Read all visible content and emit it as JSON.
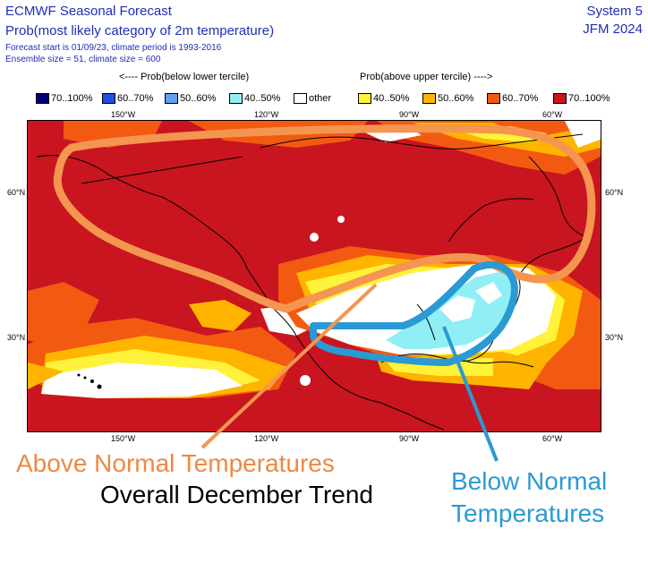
{
  "header": {
    "title": "ECMWF Seasonal Forecast",
    "subtitle": "Prob(most likely category of 2m temperature)",
    "forecast_info": "Forecast start is 01/09/23, climate period is 1993-2016",
    "ensemble_info": "Ensemble size = 51, climate size = 600",
    "system": "System 5",
    "period": "JFM 2024"
  },
  "legend": {
    "below_heading": "<---- Prob(below lower tercile)",
    "above_heading": "Prob(above upper tercile) ---->",
    "items": [
      {
        "label": "70..100%",
        "color": "#00007a"
      },
      {
        "label": "60..70%",
        "color": "#1f4fe0"
      },
      {
        "label": "50..60%",
        "color": "#5fa0f0"
      },
      {
        "label": "40..50%",
        "color": "#8feff5"
      },
      {
        "label": "other",
        "color": "#ffffff"
      },
      {
        "label": "40..50%",
        "color": "#fff23a"
      },
      {
        "label": "50..60%",
        "color": "#ffb400"
      },
      {
        "label": "60..70%",
        "color": "#f25a12"
      },
      {
        "label": "70..100%",
        "color": "#c9151f"
      }
    ]
  },
  "axes": {
    "lon_top": [
      "150°W",
      "120°W",
      "90°W",
      "60°W"
    ],
    "lon_bottom": [
      "150°W",
      "120°W",
      "90°W",
      "60°W"
    ],
    "lat_left": [
      "60°N",
      "30°N"
    ],
    "lat_right": [
      "60°N",
      "30°N"
    ]
  },
  "annotations": {
    "above": "Above Normal Temperatures",
    "trend": "Overall December Trend",
    "below_line1": "Below Normal",
    "below_line2": "Temperatures",
    "above_color": "#ee8842",
    "below_color": "#2a9ad4"
  }
}
